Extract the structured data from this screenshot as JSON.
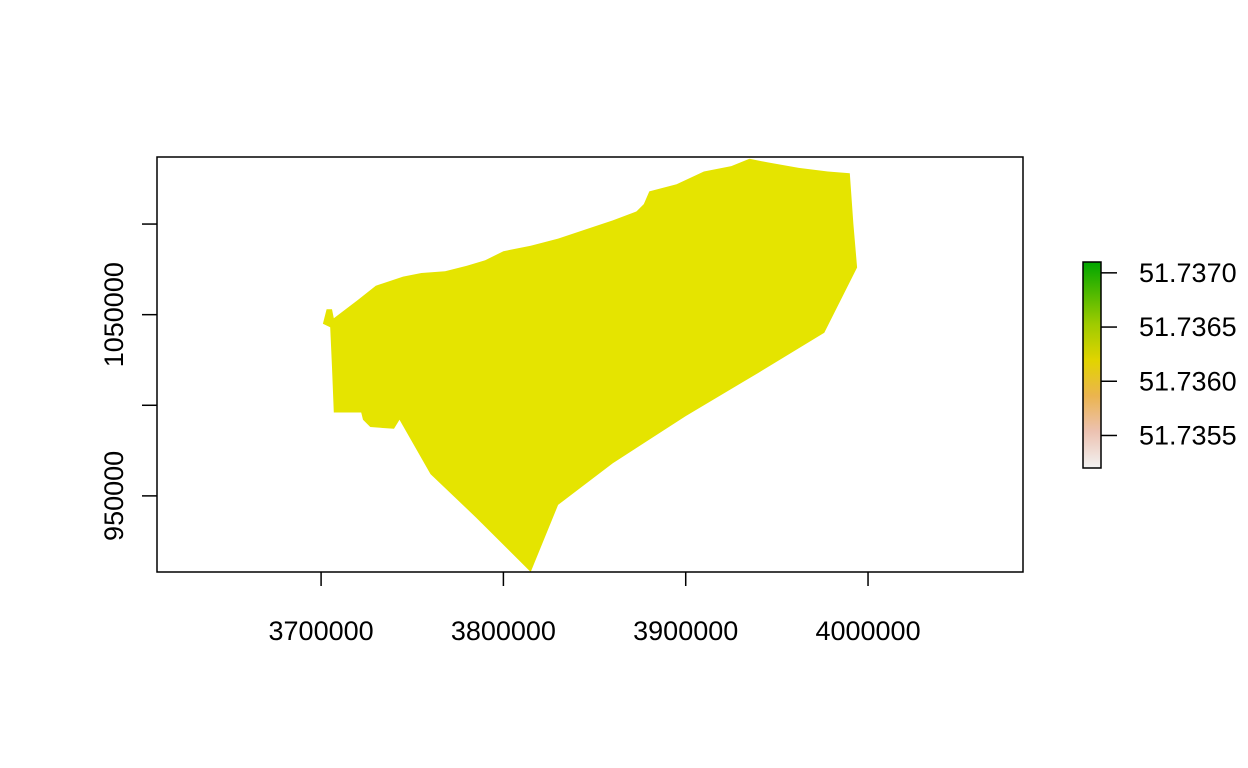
{
  "chart_data": {
    "type": "heatmap",
    "title": "",
    "xlabel": "",
    "ylabel": "",
    "xlim": [
      3610000,
      4085000
    ],
    "ylim": [
      908000,
      1137000
    ],
    "x_ticks": [
      {
        "value": 3700000,
        "label": "3700000"
      },
      {
        "value": 3800000,
        "label": "3800000"
      },
      {
        "value": 3900000,
        "label": "3900000"
      },
      {
        "value": 4000000,
        "label": "4000000"
      }
    ],
    "y_ticks": [
      {
        "value": 950000,
        "label": "950000"
      },
      {
        "value": 1000000,
        "label": ""
      },
      {
        "value": 1050000,
        "label": "1050000"
      },
      {
        "value": 1100000,
        "label": ""
      }
    ],
    "raster": {
      "fill_color": "#e5e400",
      "value": 51.736,
      "outline": [
        [
          3701000,
          1045000
        ],
        [
          3703000,
          1053000
        ],
        [
          3706000,
          1053000
        ],
        [
          3707000,
          1048000
        ],
        [
          3720000,
          1058000
        ],
        [
          3730000,
          1066000
        ],
        [
          3745000,
          1071000
        ],
        [
          3755000,
          1073000
        ],
        [
          3768000,
          1074000
        ],
        [
          3780000,
          1077000
        ],
        [
          3790000,
          1080000
        ],
        [
          3800000,
          1085000
        ],
        [
          3815000,
          1088000
        ],
        [
          3830000,
          1092000
        ],
        [
          3845000,
          1097000
        ],
        [
          3860000,
          1102000
        ],
        [
          3873000,
          1107000
        ],
        [
          3877000,
          1111000
        ],
        [
          3880000,
          1118000
        ],
        [
          3895000,
          1122000
        ],
        [
          3910000,
          1129000
        ],
        [
          3925000,
          1132000
        ],
        [
          3935000,
          1136000
        ],
        [
          3945000,
          1134000
        ],
        [
          3962000,
          1131000
        ],
        [
          3978000,
          1129000
        ],
        [
          3990000,
          1128000
        ],
        [
          3992000,
          1100000
        ],
        [
          3994000,
          1076000
        ],
        [
          3976000,
          1040000
        ],
        [
          3940000,
          1018000
        ],
        [
          3900000,
          994000
        ],
        [
          3860000,
          968000
        ],
        [
          3830000,
          945000
        ],
        [
          3815000,
          908000
        ],
        [
          3785000,
          938000
        ],
        [
          3760000,
          962000
        ],
        [
          3743000,
          992000
        ],
        [
          3740000,
          987000
        ],
        [
          3727000,
          988000
        ],
        [
          3723000,
          992000
        ],
        [
          3722000,
          996000
        ],
        [
          3707000,
          996000
        ],
        [
          3706000,
          1021000
        ],
        [
          3705000,
          1043000
        ]
      ]
    },
    "legend": {
      "placement": "right",
      "min": 51.7352,
      "max": 51.7371,
      "ticks": [
        {
          "value": 51.7355,
          "label": "51.7355"
        },
        {
          "value": 51.736,
          "label": "51.7360"
        },
        {
          "value": 51.7365,
          "label": "51.7365"
        },
        {
          "value": 51.737,
          "label": "51.7370"
        }
      ],
      "gradient_stops": [
        {
          "offset": 0,
          "color": "#f2f2f2"
        },
        {
          "offset": 0.18,
          "color": "#ecc1b0"
        },
        {
          "offset": 0.35,
          "color": "#ebb44f"
        },
        {
          "offset": 0.52,
          "color": "#e2d400"
        },
        {
          "offset": 0.7,
          "color": "#9ecb00"
        },
        {
          "offset": 1,
          "color": "#00a600"
        }
      ]
    }
  }
}
